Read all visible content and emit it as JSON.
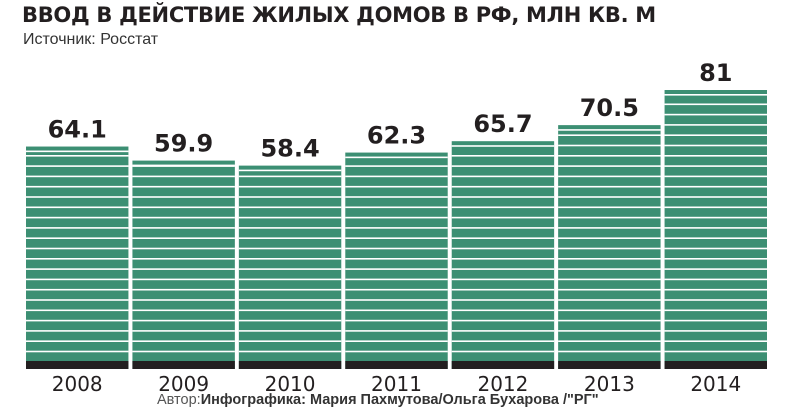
{
  "colors": {
    "bar": "#3c8f73",
    "bar_stripe": "#ffffff",
    "baseline": "#231f20",
    "text": "#231f20"
  },
  "chart_data": {
    "type": "bar",
    "title": "ВВОД В ДЕЙСТВИЕ ЖИЛЫХ ДОМОВ В РФ, МЛН КВ. М",
    "subtitle": "Источник: Росстат",
    "categories": [
      "2008",
      "2009",
      "2010",
      "2011",
      "2012",
      "2013",
      "2014"
    ],
    "values": [
      64.1,
      59.9,
      58.4,
      62.3,
      65.7,
      70.5,
      81
    ],
    "value_labels": [
      "64.1",
      "59.9",
      "58.4",
      "62.3",
      "65.7",
      "70.5",
      "81"
    ],
    "ylim": [
      0,
      81
    ],
    "xlabel": "",
    "ylabel": "",
    "grid": false,
    "legend": "none"
  },
  "credit": {
    "prefix": "Автор:",
    "author": "Инфографика: Мария Пахмутова/Ольга Бухарова /\"РГ\""
  }
}
